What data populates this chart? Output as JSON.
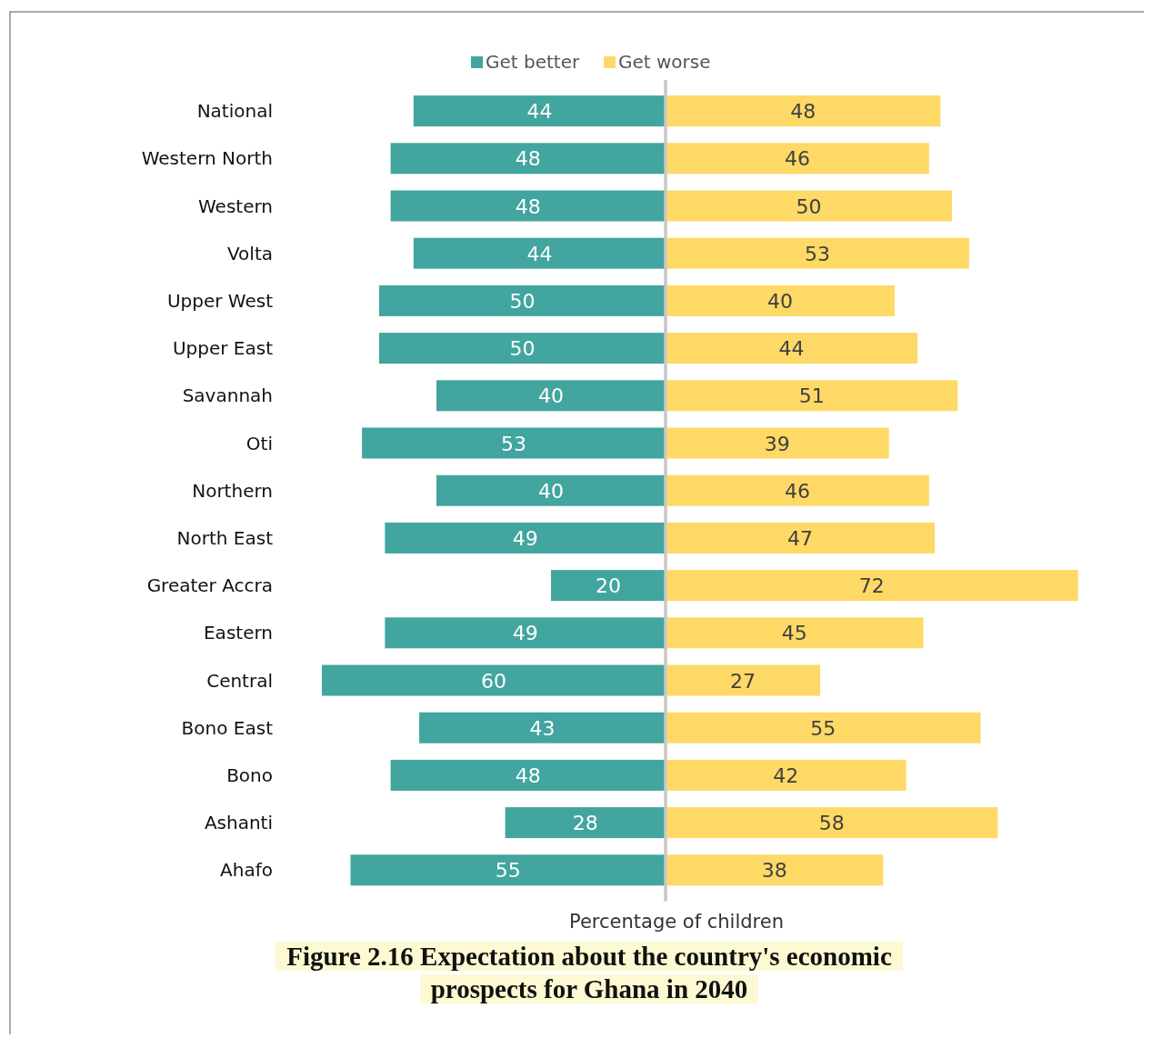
{
  "chart_data": [
    {
      "type": "bar",
      "orientation": "horizontal",
      "xlabel": "Percentage of children",
      "categories": [
        "National",
        "Western North",
        "Western",
        "Volta",
        "Upper West",
        "Upper East",
        "Savannah",
        "Oti",
        "Northern",
        "North East",
        "Greater Accra",
        "Eastern",
        "Central",
        "Bono East",
        "Bono",
        "Ashanti",
        "Ahafo"
      ],
      "xlim": [
        60,
        0
      ],
      "series": [
        {
          "name": "Get better",
          "color": "#42a59f",
          "values": [
            44,
            48,
            48,
            44,
            50,
            50,
            40,
            53,
            40,
            49,
            20,
            49,
            60,
            43,
            48,
            28,
            55
          ]
        }
      ],
      "data_labels": true,
      "legend": "top",
      "tick_labels": "y"
    },
    {
      "type": "bar",
      "orientation": "horizontal",
      "title": "Figure 2.16 Expectation about the country's economic prospects for Ghana in 2040",
      "xlim": [
        0,
        72
      ],
      "series": [
        {
          "name": "Get worse",
          "color": "#fed966",
          "values": [
            48,
            46,
            50,
            53,
            40,
            44,
            51,
            39,
            46,
            47,
            72,
            45,
            27,
            55,
            42,
            58,
            38
          ]
        }
      ],
      "data_labels": true,
      "legend": "top",
      "tick_labels": false
    }
  ]
}
